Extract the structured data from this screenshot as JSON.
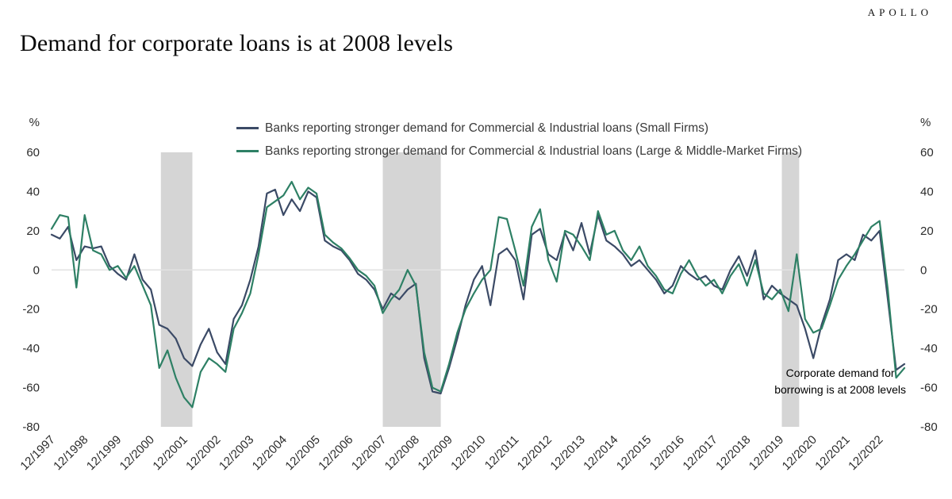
{
  "header": {
    "logo": "APOLLO"
  },
  "chart_data": {
    "type": "line",
    "title": "Demand for corporate loans is at 2008 levels",
    "y_unit_left": "%",
    "y_unit_right": "%",
    "ylim": [
      -80,
      60
    ],
    "yticks": [
      60,
      40,
      20,
      0,
      -20,
      -40,
      -60,
      -80
    ],
    "grid": "zero-line-only",
    "legend_position": "top",
    "x_tick_every": 4,
    "x_tick_labels": [
      "12/1997",
      "12/1998",
      "12/1999",
      "12/2000",
      "12/2001",
      "12/2002",
      "12/2003",
      "12/2004",
      "12/2005",
      "12/2006",
      "12/2007",
      "12/2008",
      "12/2009",
      "12/2010",
      "12/2011",
      "12/2012",
      "12/2013",
      "12/2014",
      "12/2015",
      "12/2016",
      "12/2017",
      "12/2018",
      "12/2019",
      "12/2020",
      "12/2021",
      "12/2022"
    ],
    "x_frequency": "quarterly",
    "series": [
      {
        "name": "Banks reporting stronger demand for Commercial & Industrial loans (Small Firms)",
        "color": "#3b4a66",
        "values": [
          18,
          16,
          22,
          5,
          12,
          11,
          12,
          2,
          -2,
          -5,
          8,
          -5,
          -10,
          -28,
          -30,
          -35,
          -45,
          -49,
          -38,
          -30,
          -42,
          -48,
          -25,
          -18,
          -5,
          12,
          39,
          41,
          28,
          36,
          30,
          40,
          37,
          15,
          12,
          10,
          5,
          -2,
          -5,
          -10,
          -20,
          -12,
          -15,
          -10,
          -7,
          -45,
          -62,
          -63,
          -50,
          -35,
          -18,
          -5,
          2,
          -18,
          8,
          11,
          5,
          -15,
          18,
          21,
          8,
          5,
          19,
          10,
          24,
          8,
          28,
          15,
          12,
          8,
          2,
          5,
          0,
          -5,
          -12,
          -8,
          2,
          -2,
          -5,
          -3,
          -8,
          -10,
          0,
          7,
          -3,
          10,
          -15,
          -8,
          -12,
          -15,
          -18,
          -30,
          -45,
          -28,
          -15,
          5,
          8,
          5,
          18,
          15,
          20,
          -15,
          -51,
          -48
        ]
      },
      {
        "name": "Banks reporting stronger demand for Commercial & Industrial loans (Large & Middle-Market Firms)",
        "color": "#2e8065",
        "values": [
          21,
          28,
          27,
          -9,
          28,
          10,
          8,
          0,
          2,
          -4,
          2,
          -8,
          -18,
          -50,
          -41,
          -55,
          -65,
          -70,
          -52,
          -45,
          -48,
          -52,
          -30,
          -22,
          -12,
          8,
          32,
          35,
          38,
          45,
          36,
          42,
          39,
          18,
          14,
          11,
          6,
          0,
          -3,
          -8,
          -22,
          -15,
          -10,
          0,
          -8,
          -42,
          -60,
          -62,
          -48,
          -32,
          -20,
          -12,
          -5,
          0,
          27,
          26,
          10,
          -8,
          22,
          31,
          5,
          -6,
          20,
          18,
          12,
          5,
          30,
          18,
          20,
          10,
          5,
          12,
          2,
          -3,
          -10,
          -12,
          -2,
          5,
          -3,
          -8,
          -5,
          -12,
          -3,
          3,
          -8,
          5,
          -12,
          -15,
          -10,
          -21,
          8,
          -25,
          -32,
          -30,
          -18,
          -5,
          2,
          8,
          15,
          22,
          25,
          -10,
          -55,
          -50
        ]
      }
    ],
    "recession_bands": [
      {
        "start": 13.2,
        "end": 17.0
      },
      {
        "start": 40.0,
        "end": 47.0
      },
      {
        "start": 88.2,
        "end": 90.3
      }
    ],
    "band_color": "#d5d5d5",
    "zero_line_color": "#e2e2e2",
    "annotation_lines": [
      "Corporate demand for",
      "borrowing is at 2008 levels"
    ]
  }
}
